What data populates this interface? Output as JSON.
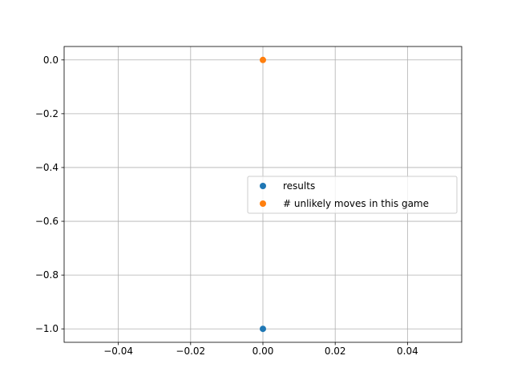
{
  "chart_data": {
    "type": "scatter",
    "title": "",
    "xlabel": "",
    "ylabel": "",
    "xlim": [
      -0.055,
      0.055
    ],
    "ylim": [
      -1.05,
      0.05
    ],
    "x_ticks": [
      -0.04,
      -0.02,
      0.0,
      0.02,
      0.04
    ],
    "x_tick_labels": [
      "−0.04",
      "−0.02",
      "0.00",
      "0.02",
      "0.04"
    ],
    "y_ticks": [
      0.0,
      -0.2,
      -0.4,
      -0.6,
      -0.8,
      -1.0
    ],
    "y_tick_labels": [
      "0.0",
      "−0.2",
      "−0.4",
      "−0.6",
      "−0.8",
      "−1.0"
    ],
    "grid": true,
    "legend_position": "center-right",
    "series": [
      {
        "name": "results",
        "color": "#1f77b4",
        "points": [
          {
            "x": 0.0,
            "y": -1.0
          }
        ]
      },
      {
        "name": "# unlikely moves in this game",
        "color": "#ff7f0e",
        "points": [
          {
            "x": 0.0,
            "y": 0.0
          }
        ]
      }
    ]
  }
}
